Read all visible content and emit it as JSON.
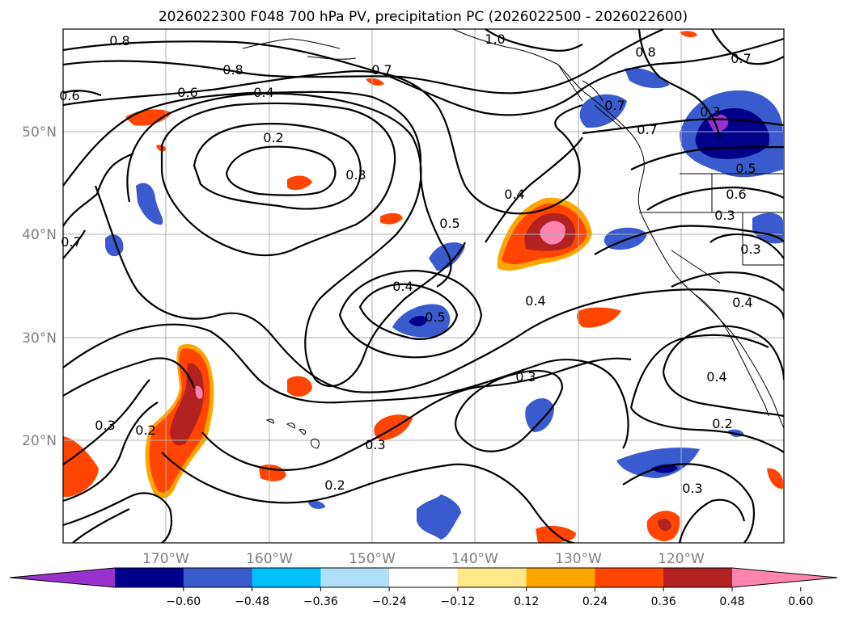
{
  "figure": {
    "title": "2026022300 F048 700 hPa PV, precipitation PC (2026022500 - 2026022600)"
  },
  "map": {
    "projection": "PlateCarree",
    "extent_lon": [
      -180,
      -110
    ],
    "extent_lat": [
      10,
      60
    ],
    "lat_labels": [
      "20°N",
      "30°N",
      "40°N",
      "50°N"
    ],
    "lon_labels": [
      "170°W",
      "160°W",
      "150°W",
      "140°W",
      "130°W",
      "120°W"
    ],
    "gridlines": true,
    "contour_field": "700 hPa PV",
    "shaded_field": "precipitation PC",
    "contour_labels": [
      {
        "text": "0.8"
      },
      {
        "text": "0.8"
      },
      {
        "text": "0.6"
      },
      {
        "text": "0.7"
      },
      {
        "text": "0.4"
      },
      {
        "text": "0.2"
      },
      {
        "text": "0.3"
      },
      {
        "text": "0.4"
      },
      {
        "text": "0.5"
      },
      {
        "text": "0.4"
      },
      {
        "text": "0.5"
      },
      {
        "text": "0.4"
      },
      {
        "text": "0.3"
      },
      {
        "text": "0.3"
      },
      {
        "text": "0.2"
      },
      {
        "text": "0.3"
      },
      {
        "text": "0.2"
      },
      {
        "text": "0.3"
      },
      {
        "text": "0.4"
      },
      {
        "text": "0.2"
      },
      {
        "text": "0.3"
      },
      {
        "text": "0.4"
      },
      {
        "text": "0.7"
      },
      {
        "text": "1.0"
      },
      {
        "text": "0.8"
      },
      {
        "text": "0.7"
      },
      {
        "text": "0.7"
      },
      {
        "text": "0.6"
      },
      {
        "text": "0.5"
      },
      {
        "text": "0.3"
      },
      {
        "text": "0.3"
      },
      {
        "text": "0.6"
      },
      {
        "text": "0.7"
      }
    ]
  },
  "colorbar": {
    "ticks": [
      "−0.60",
      "−0.48",
      "−0.36",
      "−0.24",
      "−0.12",
      "0.12",
      "0.24",
      "0.36",
      "0.48",
      "0.60"
    ],
    "colors": [
      "#9932cc",
      "#00008b",
      "#3a5bcd",
      "#00bfff",
      "#b0e0f8",
      "#ffffff",
      "#ffe98a",
      "#ffa500",
      "#ff4500",
      "#b22222",
      "#ff85b0"
    ],
    "extend": "both"
  }
}
